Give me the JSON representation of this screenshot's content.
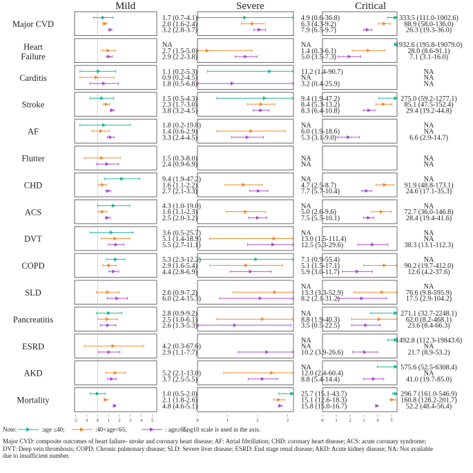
{
  "chart_data": {
    "type": "forest",
    "scale_note": "Log10 scale is used in the axis.",
    "panels": [
      {
        "title": "Mild",
        "ticks": [
          "-2",
          "-1",
          "0",
          "1",
          "2",
          "3",
          "4",
          "5"
        ],
        "xlim": [
          -2.1,
          5.4
        ]
      },
      {
        "title": "Severe",
        "ticks": [
          "0",
          "1",
          "2",
          "3"
        ],
        "xlim": [
          0,
          3.2
        ]
      },
      {
        "title": "Critical",
        "ticks": [
          "0",
          "1",
          "2",
          "3",
          "4",
          "5"
        ],
        "xlim": [
          0,
          5.4
        ]
      }
    ],
    "series": [
      {
        "name": "age ≤40",
        "legend": ":age ≤40;",
        "color": "#1ab394"
      },
      {
        "name": "40<age<65",
        "legend": ":40<age<65;",
        "color": "#f0892a"
      },
      {
        "name": "age ≥65",
        "legend": ": age≥65;",
        "color": "#a64ad4"
      }
    ],
    "rows": [
      {
        "label": "Major CVD",
        "mild": [
          "1.7 (0.7-4.1)",
          "2.0 (1.6-2.4)",
          "3.2 (2.8-3.7)"
        ],
        "severe": [
          "4.9 (0.6-36.8)",
          "6.3 (4.3-9.2)",
          "7.9 (6.5-9.7)"
        ],
        "critical": [
          "333.5 (111.0-1002.6)",
          "88.9 (58.0-136.0)",
          "26.3 (19.3-36.0)"
        ]
      },
      {
        "label": "Heart Failure",
        "mild": [
          "NA",
          "2.7 (1.5-5.0)",
          "2.9 (2.2-3.8)"
        ],
        "severe": [
          "NA",
          "1.4 (0.3-6.1)",
          "5.0 (3.5-7.3)"
        ],
        "critical": [
          "1932.6 (195.8-19079.0)",
          "28.0 (8.6-91.1)",
          "7.1 (3.1-16.0)"
        ]
      },
      {
        "label": "Carditis",
        "mild": [
          "1.1 (0.2-5.3)",
          "0.9 (0.2-4.5)",
          "1.8 (0.5-6.8)"
        ],
        "severe": [
          "11.2 (1.4-90.7)",
          "NA",
          "3.2 (0.4-25.9)"
        ],
        "critical": [
          "NA",
          "NA",
          "NA"
        ]
      },
      {
        "label": "Stroke",
        "mild": [
          "1.5 (0.5-4.3)",
          "2.3 (1.7-3.0)",
          "3.8 (3.2-4.5)"
        ],
        "severe": [
          "9.4 (1.9-47.2)",
          "8.4 (5.3-13.2)",
          "8.3 (6.4-10.8)"
        ],
        "critical": [
          "275.0 (59.2-1277.1)",
          "85.1 (47.5-152.4)",
          "29.4 (19.2-44.8)"
        ]
      },
      {
        "label": "AF",
        "mild": [
          "1.8 (0.2-19.8)",
          "1.4 (0.6-2.9)",
          "3.3 (2.4-4.5)"
        ],
        "severe": [
          "NA",
          "6.0 (1.9-18.6)",
          "5.3 (3.1-9.0)"
        ],
        "critical": [
          "NA",
          "NA",
          "6.6 (2.9-14.7)"
        ]
      },
      {
        "label": "Flutter",
        "mild": [
          "",
          "1.5 (0.3-8.0)",
          "2.4 (0.9-6.9)"
        ],
        "severe": [
          "",
          "NA",
          "NA"
        ],
        "critical": [
          "",
          "NA",
          "NA"
        ]
      },
      {
        "label": "CHD",
        "mild": [
          "9.4 (1.9-47.2)",
          "1.6 (1.1-2.2)",
          "2.7 (2.1-3.3)"
        ],
        "severe": [
          "NA",
          "4.7 (2.5-8.7)",
          "7.7 (5.7-10.4)"
        ],
        "critical": [
          "NA",
          "91.9 (48.8-173.1)",
          "24.6 (17.1-35.3)"
        ]
      },
      {
        "label": "ACS",
        "mild": [
          "4.3 (1.0-19.0)",
          "1.6 (1.1-2.3)",
          "2.5 (2.0-3.2)"
        ],
        "severe": [
          "NA",
          "5.0 (2.6-9.6)",
          "7.5 (5.5-10.1)"
        ],
        "critical": [
          "NA",
          "72.7 (36.0-146.8)",
          "28.4 (19.4-41.6)"
        ]
      },
      {
        "label": "DVT",
        "mild": [
          "3.6 (0.5-25.7)",
          "5.1 (1.4-18.9)",
          "5.5 (2.7-11.1)"
        ],
        "severe": [
          "NA",
          "13.0 (1.5-111.4)",
          "12.5 (5.3-29.6)"
        ],
        "critical": [
          "NA",
          "NA",
          "38.3 (13.1-112.3)"
        ]
      },
      {
        "label": "COPD",
        "mild": [
          "5.3 (2.3-12.2)",
          "2.9 (1.6-5.4)",
          "4.4 (2.8-6.9)"
        ],
        "severe": [
          "7.1 (0.9-55.4)",
          "5.1 (1.5-17.1)",
          "5.9 (3.0-11.7)"
        ],
        "critical": [
          "NA",
          "90.2 (19.7-412.0)",
          "12.6 (4.2-37.6)"
        ]
      },
      {
        "label": "SLD",
        "mild": [
          "",
          "2.6 (0.9-7.2)",
          "6.0 (2.4-15.3)"
        ],
        "severe": [
          "NA",
          "13.3 (3.3-52.9)",
          "8.2 (2.1-31.2)"
        ],
        "critical": [
          "NA",
          "76.6 (9.8-595.9)",
          "17.5 (2.9-104.2)"
        ]
      },
      {
        "label": "Pancreatitis",
        "mild": [
          "2.8 (0.9-9.2)",
          "2.5 (1.0-6.1)",
          "2.6 (1.3-5.3)"
        ],
        "severe": [
          "NA",
          "8.8 (1.9-40.3)",
          "3.5 (0.5-22.5)"
        ],
        "critical": [
          "271.1 (32.7-2248.1)",
          "62.0 (8.2-468.1)",
          "23.6 (8.4-66.3)"
        ]
      },
      {
        "label": "ESRD",
        "mild": [
          "",
          "4.2 (0.3-67.6)",
          "2.9 (1.1-7.7)"
        ],
        "severe": [
          "NA",
          "NA",
          "10.2 (3.9-26.6)"
        ],
        "critical": [
          "1492.8 (112.3-19843.6)",
          "NA",
          "21.7 (8.9-53.2)"
        ]
      },
      {
        "label": "AKD",
        "mild": [
          "",
          "5.2 (2.1-13.0)",
          "3.7 (2.5-5.5)"
        ],
        "severe": [
          "NA",
          "12.0 (2.4-60.4)",
          "8.8 (5.4-14.4)"
        ],
        "critical": [
          "575.6 (52.5-6308.4)",
          "NA",
          "41.0 (19.7-85.0)"
        ]
      },
      {
        "label": "Mortality",
        "mild": [
          "1.0 (0.5-2.0)",
          "2.1 (1.8-2.6)",
          "4.8 (4.6-5.1)"
        ],
        "severe": [
          "25.7 (15.1-43.7)",
          "15.1 (12.6-18.3)",
          "15.8 (15.0-16.7)"
        ],
        "critical": [
          "296.7 (161.0-546.9)",
          "160.8 (128.2-201.7)",
          "52.2 (48.4-56.4)"
        ]
      }
    ]
  },
  "footer": {
    "note_label": "Note:",
    "abbrev_line_1": "Major CVD: composite outcomes of heart failure- stroke and coronary heart disease; AF: Atrial fibrillation; CHD: coronary heart disease; ACS: acute coronary syndrome;",
    "abbrev_line_2": "DVT: Deep vein thrombosis; COPD: Chronic pulmonary disease; SLD: Severe liver disease; ESRD: End stage renal disease; AKD: Acute kidney disease; NA: Not available",
    "abbrev_line_3": "due to insufficient number."
  }
}
